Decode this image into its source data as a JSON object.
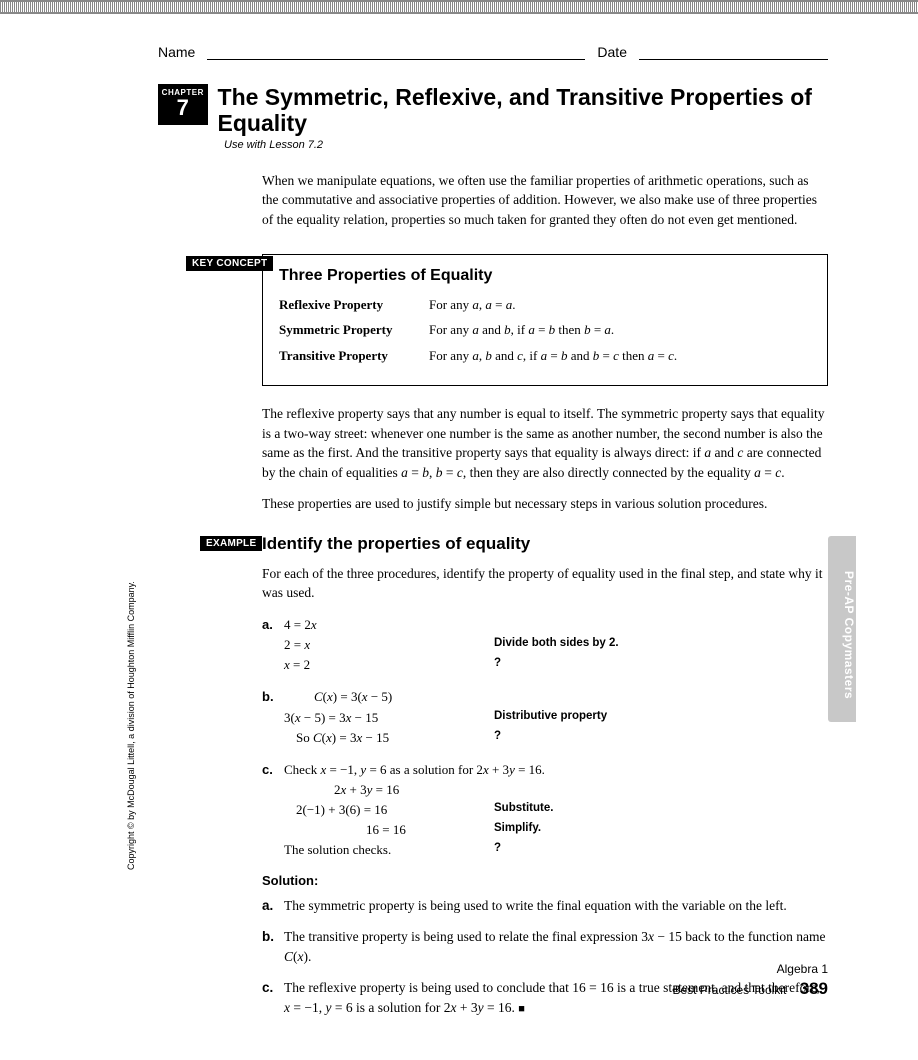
{
  "header": {
    "name_label": "Name",
    "date_label": "Date"
  },
  "chapter": {
    "label": "CHAPTER",
    "number": "7",
    "title": "The Symmetric, Reflexive, and Transitive Properties of Equality",
    "subtitle": "Use with Lesson 7.2"
  },
  "intro": "When we manipulate equations, we often use the familiar properties of arithmetic operations, such as the commutative and associative properties of addition. However, we also make use of three properties of the equality relation, properties so much taken for granted they often do not even get mentioned.",
  "labels": {
    "key_concept": "KEY CONCEPT",
    "example": "EXAMPLE"
  },
  "concept": {
    "title": "Three Properties of Equality",
    "rows": [
      {
        "name": "Reflexive Property",
        "desc_html": "For any <span class='i'>a</span>, <span class='i'>a</span> = <span class='i'>a</span>."
      },
      {
        "name": "Symmetric Property",
        "desc_html": "For any <span class='i'>a</span> and <span class='i'>b</span>, if <span class='i'>a</span> = <span class='i'>b</span> then <span class='i'>b</span> = <span class='i'>a</span>."
      },
      {
        "name": "Transitive Property",
        "desc_html": "For any <span class='i'>a</span>, <span class='i'>b</span> and <span class='i'>c</span>, if <span class='i'>a</span> = <span class='i'>b</span> and <span class='i'>b</span> = <span class='i'>c</span> then <span class='i'>a</span> = <span class='i'>c</span>."
      }
    ]
  },
  "explain1_html": "The reflexive property says that any number is equal to itself. The symmetric property says that equality is a two-way street: whenever one number is the same as another number, the second number is also the same as the first. And the transitive property says that equality is always direct: if <span class='i'>a</span> and <span class='i'>c</span> are connected by the chain of equalities <span class='i'>a</span> = <span class='i'>b</span>, <span class='i'>b</span> = <span class='i'>c</span>, then they are also directly connected by the equality <span class='i'>a</span> = <span class='i'>c</span>.",
  "explain2": "These properties are used to justify simple but necessary steps in various solution procedures.",
  "example": {
    "title": "Identify the properties of equality",
    "prompt": "For each of the three procedures, identify the property of equality used in the final step, and state why it was used.",
    "items": {
      "a": {
        "lines": [
          {
            "left_html": "4 = 2<span class='i'>x</span>",
            "note": ""
          },
          {
            "left_html": "2 = <span class='i'>x</span>",
            "note": "Divide both sides by 2."
          },
          {
            "left_html": "<span class='i'>x</span> = 2",
            "note": "?"
          }
        ]
      },
      "b": {
        "lines": [
          {
            "left_html": "<span class='indent1'><span class='i'>C</span>(<span class='i'>x</span>) = 3(<span class='i'>x</span> − 5)</span>",
            "note": ""
          },
          {
            "left_html": "3(<span class='i'>x</span> − 5) = 3<span class='i'>x</span> − 15",
            "note": "Distributive property"
          },
          {
            "left_html": "<span class='indent3'>So <span class='i'>C</span>(<span class='i'>x</span>) = 3<span class='i'>x</span> − 15</span>",
            "note": "?"
          }
        ]
      },
      "c": {
        "lead_html": "Check <span class='i'>x</span> = −1, <span class='i'>y</span> = 6 as a solution for 2<span class='i'>x</span> + 3<span class='i'>y</span> = 16.",
        "lines": [
          {
            "left_html": "<span class='indent2'>2<span class='i'>x</span> + 3<span class='i'>y</span> = 16</span>",
            "note": ""
          },
          {
            "left_html": "<span class='indent3'>2(−1) + 3(6) = 16</span>",
            "note": "Substitute."
          },
          {
            "left_html": "<span style='padding-left:82px'>16 = 16</span>",
            "note": "Simplify."
          },
          {
            "left_html": "The solution checks.",
            "note": "?"
          }
        ]
      }
    },
    "solution_label": "Solution:",
    "solutions": {
      "a": "The symmetric property is being used to write the final equation with the variable on the left.",
      "b_html": "The transitive property is being used to relate the final expression 3<span class='i'>x</span> − 15 back to the function name <span class='i'>C</span>(<span class='i'>x</span>).",
      "c_html": "The reflexive property is being used to conclude that 16 = 16 is a true statement, and that therefore, <span class='i'>x</span> = −1, <span class='i'>y</span> = 6 is a solution for 2<span class='i'>x</span> + 3<span class='i'>y</span> = 16. <span class='endmark'>■</span>"
    }
  },
  "copyright": "Copyright © by McDougal Littell, a division of Houghton Mifflin Company.",
  "side_tab": "Pre-AP Copymasters",
  "footer": {
    "line1": "Algebra 1",
    "line2": "Best Practices Toolkit",
    "page": "389"
  }
}
